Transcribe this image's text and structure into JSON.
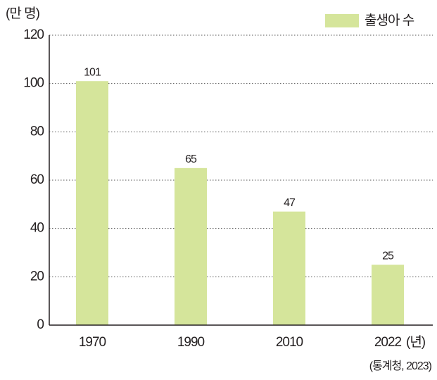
{
  "chart_data": {
    "type": "bar",
    "y_label": "(만 명)",
    "x_unit": "(년)",
    "source": "(통계청, 2023)",
    "categories": [
      "1970",
      "1990",
      "2010",
      "2022"
    ],
    "series": [
      {
        "name": "출생아 수",
        "color": "#d5e59b",
        "values": [
          101,
          65,
          47,
          25
        ]
      }
    ],
    "ylim": [
      0,
      120
    ],
    "yticks": [
      0,
      20,
      40,
      60,
      80,
      100,
      120
    ],
    "grid": true
  }
}
